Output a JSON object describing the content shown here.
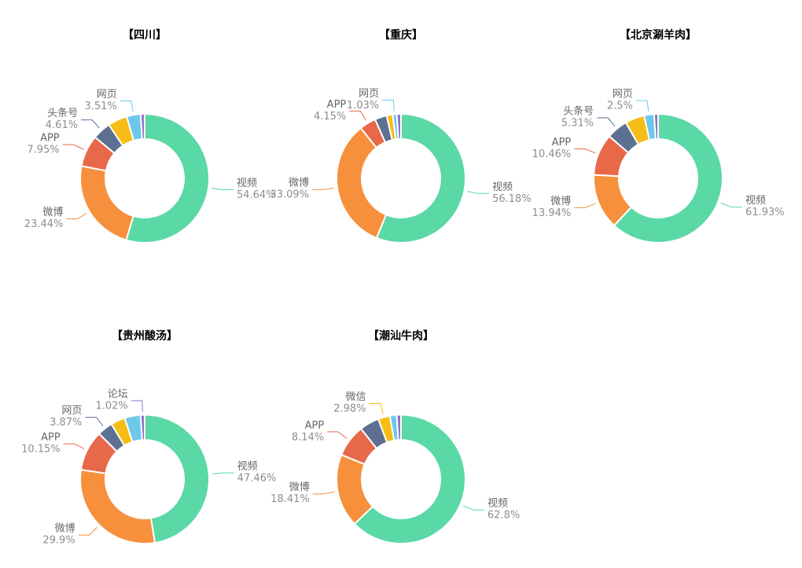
{
  "chart_data": [
    {
      "type": "donut",
      "title": "【四川】",
      "categories": [
        "视频",
        "微博",
        "APP",
        "头条号",
        null,
        "网页",
        null
      ],
      "values": [
        54.64,
        23.44,
        7.95,
        4.61,
        4.85,
        3.51,
        1.0
      ],
      "value_labels": [
        "54.64%",
        "23.44%",
        "7.95%",
        "4.61%",
        null,
        "3.51%",
        null
      ],
      "colors": [
        "#5ad8a6",
        "#f6903d",
        "#e8684a",
        "#5d7092",
        "#f6bd16",
        "#6dc8ec",
        "#9270ca"
      ]
    },
    {
      "type": "donut",
      "title": "【重庆】",
      "categories": [
        "视频",
        "微博",
        "APP",
        null,
        null,
        "网页",
        null
      ],
      "values": [
        56.18,
        33.09,
        4.15,
        3.0,
        1.5,
        1.03,
        1.05
      ],
      "value_labels": [
        "56.18%",
        "33.09%",
        "4.15%",
        null,
        null,
        "1.03%",
        null
      ],
      "colors": [
        "#5ad8a6",
        "#f6903d",
        "#e8684a",
        "#5d7092",
        "#f6bd16",
        "#6dc8ec",
        "#9270ca"
      ]
    },
    {
      "type": "donut",
      "title": "【北京涮羊肉】",
      "categories": [
        "视频",
        "微博",
        "APP",
        "头条号",
        null,
        "网页",
        null
      ],
      "values": [
        61.93,
        13.94,
        10.46,
        5.31,
        4.86,
        2.5,
        1.0
      ],
      "value_labels": [
        "61.93%",
        "13.94%",
        "10.46%",
        "5.31%",
        null,
        "2.5%",
        null
      ],
      "colors": [
        "#5ad8a6",
        "#f6903d",
        "#e8684a",
        "#5d7092",
        "#f6bd16",
        "#6dc8ec",
        "#9270ca"
      ]
    },
    {
      "type": "donut",
      "title": "【贵州酸汤】",
      "categories": [
        "视频",
        "微博",
        "APP",
        "网页",
        null,
        null,
        "论坛"
      ],
      "values": [
        47.46,
        29.9,
        10.15,
        3.87,
        3.6,
        4.0,
        1.02
      ],
      "value_labels": [
        "47.46%",
        "29.9%",
        "10.15%",
        "3.87%",
        null,
        null,
        "1.02%"
      ],
      "colors": [
        "#5ad8a6",
        "#f6903d",
        "#e8684a",
        "#5d7092",
        "#f6bd16",
        "#6dc8ec",
        "#9270ca"
      ]
    },
    {
      "type": "donut",
      "title": "【潮汕牛肉】",
      "categories": [
        "视频",
        "微博",
        "APP",
        null,
        "微信",
        null,
        null
      ],
      "values": [
        62.8,
        18.41,
        8.14,
        4.9,
        2.98,
        1.7,
        1.07
      ],
      "value_labels": [
        "62.8%",
        "18.41%",
        "8.14%",
        null,
        "2.98%",
        null,
        null
      ],
      "colors": [
        "#5ad8a6",
        "#f6903d",
        "#e8684a",
        "#5d7092",
        "#f6bd16",
        "#6dc8ec",
        "#9270ca"
      ]
    }
  ]
}
